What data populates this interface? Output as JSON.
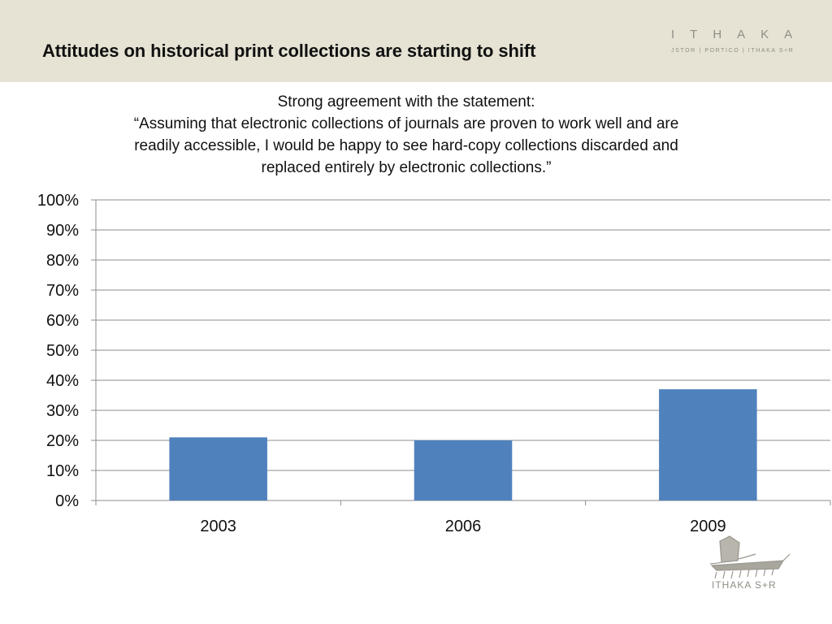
{
  "header": {
    "title": "Attitudes on historical print collections are starting to shift",
    "brand_wordmark": "ITHAKA",
    "brand_subline": "JSTOR | PORTICO | ITHAKA S+R"
  },
  "subtitle_lines": [
    "Strong agreement with the statement:",
    "“Assuming that electronic collections of journals are proven to work well and are",
    "readily accessible, I would be happy to see hard-copy collections discarded and",
    "replaced entirely by electronic collections.”"
  ],
  "footer": {
    "logo_icon": "ship-icon",
    "logo_text": "ITHAKA S+R"
  },
  "colors": {
    "header_bg": "#e6e3d4",
    "bar": "#4f81bd",
    "grid": "#8c8c8c",
    "brand_gray": "#8f8d86"
  },
  "chart_data": {
    "type": "bar",
    "categories": [
      "2003",
      "2006",
      "2009"
    ],
    "values": [
      21,
      20,
      37
    ],
    "ylim": [
      0,
      100
    ],
    "y_ticks": [
      "0%",
      "10%",
      "20%",
      "30%",
      "40%",
      "50%",
      "60%",
      "70%",
      "80%",
      "90%",
      "100%"
    ],
    "y_unit": "%",
    "grid": true,
    "legend": "none",
    "title": "",
    "xlabel": "",
    "ylabel": ""
  }
}
